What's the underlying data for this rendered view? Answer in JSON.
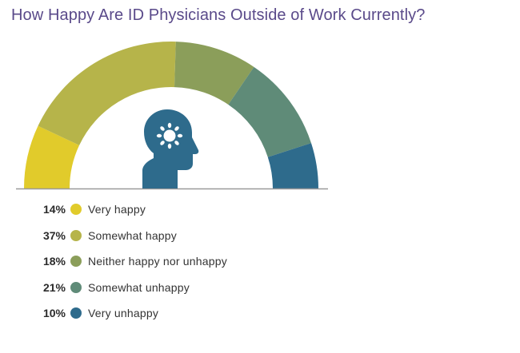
{
  "chart_data": {
    "type": "pie",
    "title": "How Happy Are ID Physicians Outside of Work Currently?",
    "unit": "%",
    "categories": [
      "Very happy",
      "Somewhat happy",
      "Neither happy nor unhappy",
      "Somewhat unhappy",
      "Very unhappy"
    ],
    "values": [
      14,
      37,
      18,
      21,
      10
    ],
    "value_labels": [
      "14%",
      "37%",
      "18%",
      "21%",
      "10%"
    ],
    "colors": [
      "#e1cb2b",
      "#b6b44a",
      "#8b9e5a",
      "#5f8b78",
      "#2e6b8c"
    ],
    "shape": "half-donut gauge",
    "legend_position": "bottom-left",
    "center_icon": "head-with-sun-icon",
    "grid": false
  }
}
